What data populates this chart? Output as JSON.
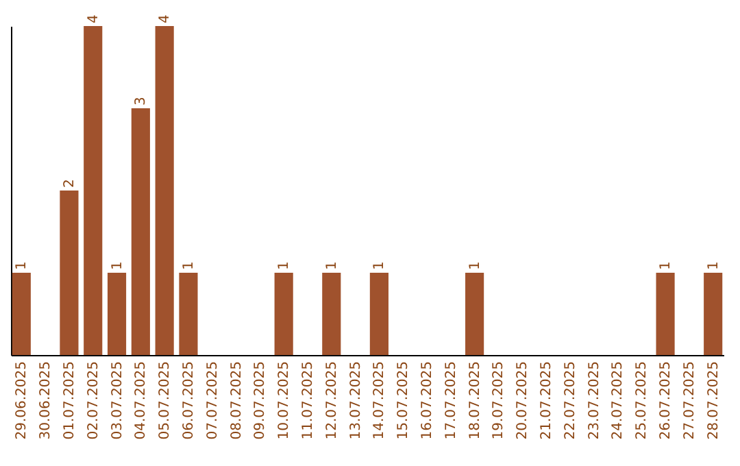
{
  "chart_data": {
    "type": "bar",
    "categories": [
      "29.06.2025",
      "30.06.2025",
      "01.07.2025",
      "02.07.2025",
      "03.07.2025",
      "04.07.2025",
      "05.07.2025",
      "06.07.2025",
      "07.07.2025",
      "08.07.2025",
      "09.07.2025",
      "10.07.2025",
      "11.07.2025",
      "12.07.2025",
      "13.07.2025",
      "14.07.2025",
      "15.07.2025",
      "16.07.2025",
      "17.07.2025",
      "18.07.2025",
      "19.07.2025",
      "20.07.2025",
      "21.07.2025",
      "22.07.2025",
      "23.07.2025",
      "24.07.2025",
      "25.07.2025",
      "26.07.2025",
      "27.07.2025",
      "28.07.2025"
    ],
    "values": [
      1,
      0,
      2,
      4,
      1,
      3,
      4,
      1,
      0,
      0,
      0,
      1,
      0,
      1,
      0,
      1,
      0,
      0,
      0,
      1,
      0,
      0,
      0,
      0,
      0,
      0,
      0,
      1,
      0,
      1
    ],
    "value_labels": [
      "1",
      null,
      "2",
      "4",
      "1",
      "3",
      "4",
      "1",
      null,
      null,
      null,
      "1",
      null,
      "1",
      null,
      "1",
      null,
      null,
      null,
      "1",
      null,
      null,
      null,
      null,
      null,
      null,
      null,
      "1",
      null,
      "1"
    ],
    "color": "#a0522d",
    "tick_labels": "x"
  }
}
